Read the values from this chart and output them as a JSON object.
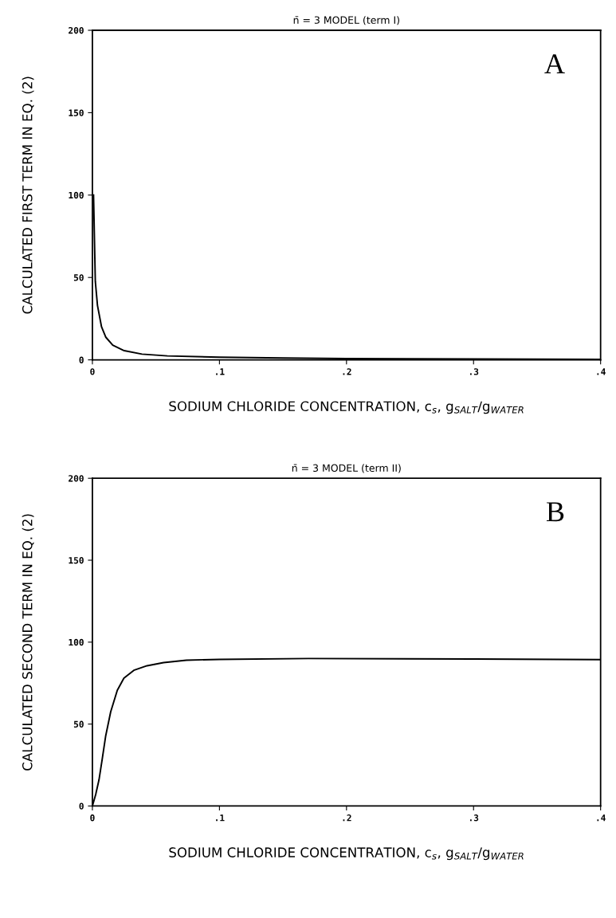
{
  "chart_data": [
    {
      "type": "line",
      "title": "n̄ = 3 MODEL (term I)",
      "xlabel": "SODIUM CHLORIDE CONCENTRATION, c$_{s}$, g$_{SALT}$/g$_{WATER}$",
      "ylabel": "CALCULATED FIRST TERM IN EQ. (2)",
      "annotations": [
        "A"
      ],
      "series": [
        {
          "color": "#000000",
          "x": [
            0.0009,
            0.0023,
            0.004,
            0.0072,
            0.0106,
            0.016,
            0.025,
            0.039,
            0.059,
            0.1,
            0.15,
            0.2,
            0.3,
            0.4
          ],
          "values": [
            100,
            47.6,
            33,
            20,
            13.7,
            8.9,
            5.6,
            3.5,
            2.4,
            1.6,
            1.1,
            0.8,
            0.5,
            0.3
          ]
        }
      ],
      "xlim": [
        0,
        0.4
      ],
      "ylim": [
        0,
        200
      ],
      "xticks": [
        0,
        {
          "value": 0.1,
          "label": ".1"
        },
        {
          "value": 0.2,
          "label": ".2"
        },
        {
          "value": 0.3,
          "label": ".3"
        },
        {
          "value": 0.4,
          "label": ".4"
        }
      ],
      "yticks": [
        0,
        50,
        100,
        150,
        200
      ],
      "grid": false,
      "legend": false,
      "marker": "none",
      "line_style": "solid"
    },
    {
      "type": "line",
      "title": "n̄ = 3 MODEL (term II)",
      "xlabel": "SODIUM CHLORIDE CONCENTRATION, c$_{s}$, g$_{SALT}$/g$_{WATER}$",
      "ylabel": "CALCULATED SECOND TERM IN EQ. (2)",
      "annotations": [
        "B"
      ],
      "series": [
        {
          "color": "#000000",
          "x": [
            0,
            0.0026,
            0.0052,
            0.0078,
            0.0104,
            0.0144,
            0.0196,
            0.0248,
            0.0326,
            0.043,
            0.056,
            0.074,
            0.1,
            0.17,
            0.3,
            0.4
          ],
          "values": [
            0,
            7,
            16,
            29,
            42.5,
            57.5,
            70.6,
            78,
            82.8,
            85.6,
            87.5,
            89,
            89.5,
            90,
            89.7,
            89.3
          ]
        }
      ],
      "xlim": [
        0,
        0.4
      ],
      "ylim": [
        0,
        200
      ],
      "xticks": [
        0,
        {
          "value": 0.1,
          "label": ".1"
        },
        {
          "value": 0.2,
          "label": ".2"
        },
        {
          "value": 0.3,
          "label": ".3"
        },
        {
          "value": 0.4,
          "label": ".4"
        }
      ],
      "yticks": [
        0,
        50,
        100,
        150,
        200
      ],
      "grid": false,
      "legend": false,
      "marker": "none",
      "line_style": "solid"
    }
  ]
}
